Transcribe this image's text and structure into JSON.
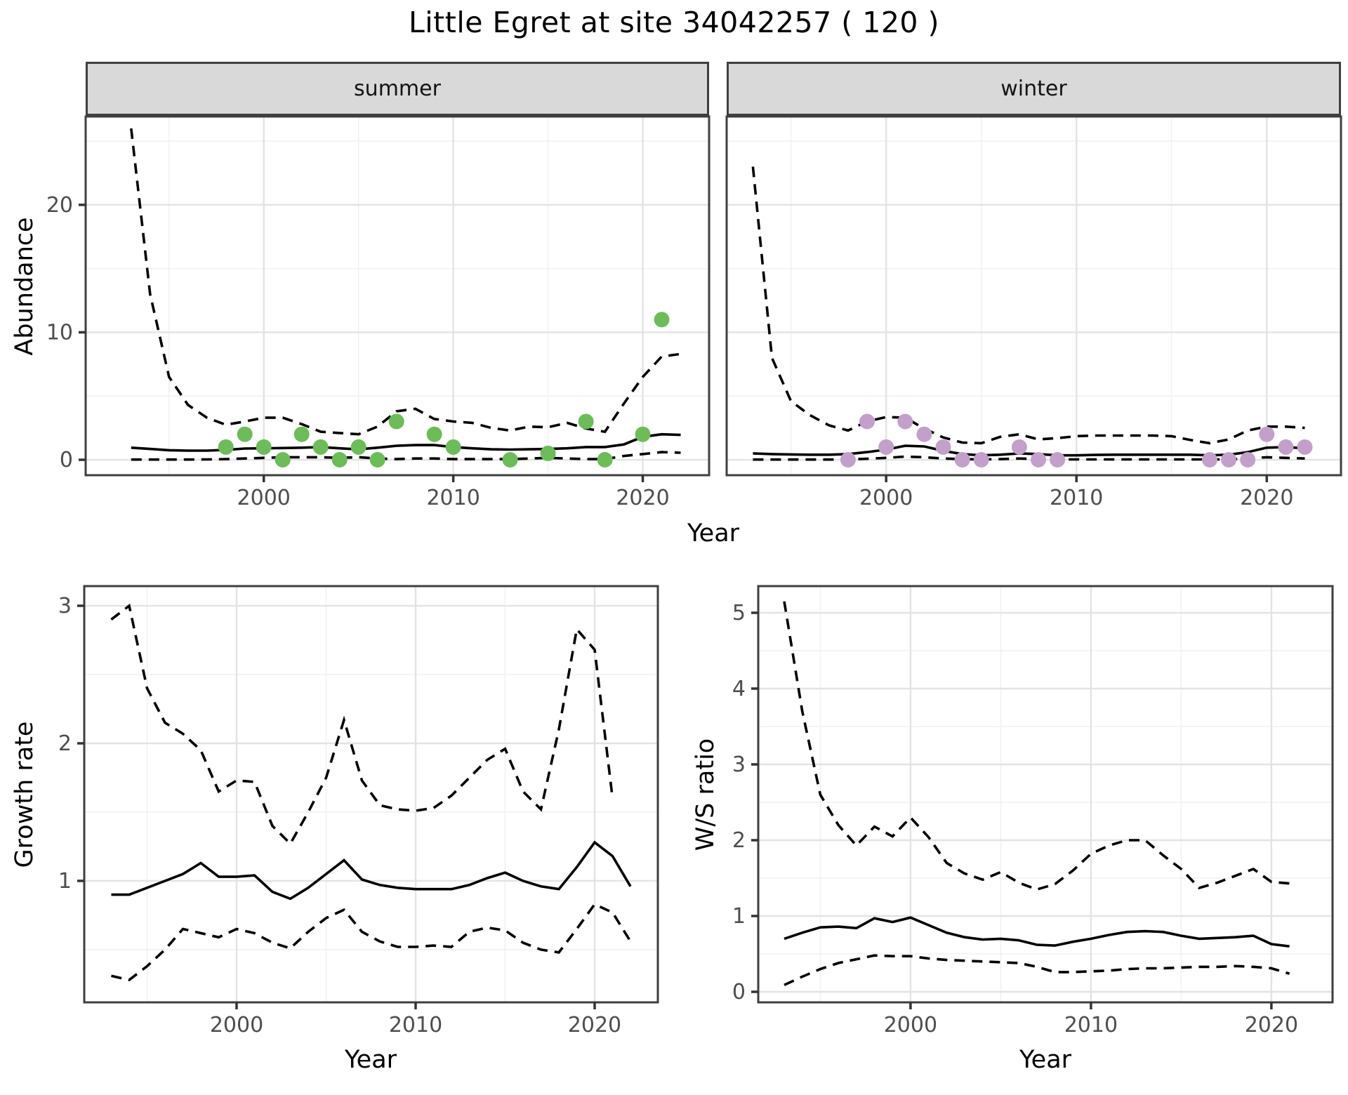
{
  "title": "Little Egret at site 34042257 ( 120 )",
  "facets": {
    "summer": "summer",
    "winter": "winter"
  },
  "axis_titles": {
    "abundance": "Abundance",
    "year_top": "Year",
    "growth_rate": "Growth rate",
    "ws_ratio": "W/S ratio",
    "year_bottom_left": "Year",
    "year_bottom_right": "Year"
  },
  "colors": {
    "summer_point": "#6cbc59",
    "winter_point": "#c39fcb",
    "line": "#000000",
    "grid_major": "#e3e3e3",
    "grid_minor": "#f1f1f1",
    "strip_bg": "#d9d9d9",
    "panel_border": "#3f3f3f",
    "tick_mark": "#333333",
    "tick_text": "#4d4d4d"
  },
  "chart_data": [
    {
      "id": "A",
      "type": "line",
      "facet": "summer",
      "title": "Little Egret at site 34042257 ( 120 ) - summer abundance",
      "xlabel": "Year",
      "ylabel": "Abundance",
      "grid": true,
      "legend": "none",
      "xlim": [
        1990.6,
        2023.5
      ],
      "ylim": [
        -1.21,
        26.93
      ],
      "xticks": {
        "values": [
          2000,
          2010,
          2020
        ],
        "labels": [
          "2000",
          "2010",
          "2020"
        ]
      },
      "xticks_minor": [
        1995,
        2005,
        2015
      ],
      "yticks": {
        "values": [
          0,
          10,
          20
        ],
        "labels": [
          "0",
          "10",
          "20"
        ]
      },
      "yticks_minor": [
        5,
        15,
        25
      ],
      "show_xtick_labels": true,
      "show_ytick_labels": true,
      "series": [
        {
          "name": "upper_95ci",
          "style": "dashed",
          "start": 1993,
          "values": [
            26,
            13,
            6.5,
            4.3,
            3.3,
            2.75,
            3,
            3.3,
            3.3,
            2.8,
            2.2,
            2.1,
            2,
            2.6,
            3.8,
            4,
            3.2,
            3,
            2.9,
            2.5,
            2.3,
            2.6,
            2.55,
            2.9,
            2.45,
            2.2,
            4.4,
            6.5,
            8.1,
            8.3
          ]
        },
        {
          "name": "median",
          "style": "solid",
          "start": 1993,
          "values": [
            0.95,
            0.85,
            0.75,
            0.72,
            0.72,
            0.78,
            0.88,
            0.9,
            0.92,
            0.95,
            1,
            0.9,
            0.82,
            0.95,
            1.1,
            1.15,
            1.15,
            1,
            0.9,
            0.82,
            0.8,
            0.82,
            0.85,
            0.9,
            1,
            1,
            1.2,
            1.8,
            2,
            1.95
          ]
        },
        {
          "name": "lower_95ci",
          "style": "dashed",
          "start": 1993,
          "values": [
            0.02,
            0.02,
            0.02,
            0.02,
            0.03,
            0.05,
            0.1,
            0.15,
            0.2,
            0.2,
            0.2,
            0.15,
            0.2,
            0.1,
            0.05,
            0.1,
            0.1,
            0.05,
            0.05,
            0.05,
            0.05,
            0.1,
            0.15,
            0.1,
            0.05,
            0.05,
            0.3,
            0.45,
            0.6,
            0.55
          ]
        }
      ],
      "points": {
        "name": "summer_counts",
        "color_key": "summer_point",
        "data": [
          [
            1998,
            1
          ],
          [
            1999,
            2
          ],
          [
            2000,
            1
          ],
          [
            2001,
            0
          ],
          [
            2002,
            2
          ],
          [
            2003,
            1
          ],
          [
            2004,
            0
          ],
          [
            2005,
            1
          ],
          [
            2006,
            0
          ],
          [
            2007,
            3
          ],
          [
            2009,
            2
          ],
          [
            2010,
            1
          ],
          [
            2013,
            0
          ],
          [
            2015,
            0.5
          ],
          [
            2017,
            3
          ],
          [
            2018,
            0
          ],
          [
            2020,
            2
          ],
          [
            2021,
            11
          ]
        ]
      }
    },
    {
      "id": "B",
      "type": "line",
      "facet": "winter",
      "title": "Little Egret at site 34042257 ( 120 ) - winter abundance",
      "xlabel": "Year",
      "ylabel": "Abundance",
      "grid": true,
      "legend": "none",
      "xlim": [
        1991.62,
        2023.9
      ],
      "ylim": [
        -1.21,
        26.93
      ],
      "xticks": {
        "values": [
          2000,
          2010,
          2020
        ],
        "labels": [
          "2000",
          "2010",
          "2020"
        ]
      },
      "xticks_minor": [
        1995,
        2005,
        2015
      ],
      "yticks": {
        "values": [
          0,
          10,
          20
        ],
        "labels": [
          "0",
          "10",
          "20"
        ]
      },
      "yticks_minor": [
        5,
        15,
        25
      ],
      "show_xtick_labels": true,
      "show_ytick_labels": false,
      "series": [
        {
          "name": "upper_95ci",
          "style": "dashed",
          "start": 1993,
          "values": [
            23,
            8,
            4.6,
            3.5,
            2.7,
            2.3,
            3,
            3.35,
            3.3,
            2.45,
            1.75,
            1.35,
            1.3,
            1.8,
            2,
            1.6,
            1.7,
            1.85,
            1.9,
            1.9,
            1.9,
            1.9,
            1.85,
            1.55,
            1.3,
            1.6,
            2.3,
            2.6,
            2.6,
            2.5
          ]
        },
        {
          "name": "median",
          "style": "solid",
          "start": 1993,
          "values": [
            0.5,
            0.45,
            0.42,
            0.4,
            0.4,
            0.45,
            0.6,
            0.8,
            1.1,
            1.05,
            0.7,
            0.45,
            0.35,
            0.4,
            0.5,
            0.45,
            0.35,
            0.35,
            0.38,
            0.4,
            0.4,
            0.4,
            0.4,
            0.4,
            0.35,
            0.4,
            0.6,
            0.95,
            1,
            0.9
          ]
        },
        {
          "name": "lower_95ci",
          "style": "dashed",
          "start": 1993,
          "values": [
            0.02,
            0.02,
            0.02,
            0.02,
            0.02,
            0.03,
            0.08,
            0.15,
            0.25,
            0.2,
            0.1,
            0.05,
            0.03,
            0.05,
            0.1,
            0.05,
            0.03,
            0.03,
            0.03,
            0.03,
            0.03,
            0.03,
            0.03,
            0.03,
            0.03,
            0.03,
            0.1,
            0.2,
            0.15,
            0.1
          ]
        }
      ],
      "points": {
        "name": "winter_counts",
        "color_key": "winter_point",
        "data": [
          [
            1998,
            0
          ],
          [
            1999,
            3
          ],
          [
            2000,
            1
          ],
          [
            2001,
            3
          ],
          [
            2002,
            2
          ],
          [
            2003,
            1
          ],
          [
            2004,
            0
          ],
          [
            2005,
            0
          ],
          [
            2007,
            1
          ],
          [
            2008,
            0
          ],
          [
            2009,
            0
          ],
          [
            2017,
            0
          ],
          [
            2018,
            0
          ],
          [
            2019,
            0
          ],
          [
            2020,
            2
          ],
          [
            2021,
            1
          ],
          [
            2022,
            1
          ]
        ]
      }
    },
    {
      "id": "C",
      "type": "line",
      "facet": null,
      "title": "Growth rate",
      "xlabel": "Year",
      "ylabel": "Growth rate",
      "grid": true,
      "legend": "none",
      "xlim": [
        1991.49,
        2023.53
      ],
      "ylim": [
        0.117,
        3.143
      ],
      "xticks": {
        "values": [
          2000,
          2010,
          2020
        ],
        "labels": [
          "2000",
          "2010",
          "2020"
        ]
      },
      "xticks_minor": [
        1995,
        2005,
        2015
      ],
      "yticks": {
        "values": [
          1,
          2,
          3
        ],
        "labels": [
          "1",
          "2",
          "3"
        ]
      },
      "yticks_minor": [
        0.5,
        1.5,
        2.5
      ],
      "show_xtick_labels": true,
      "show_ytick_labels": true,
      "series": [
        {
          "name": "upper_95ci",
          "style": "dashed",
          "start": 1993,
          "values": [
            2.9,
            3,
            2.4,
            2.15,
            2.07,
            1.95,
            1.65,
            1.73,
            1.72,
            1.4,
            1.27,
            1.5,
            1.75,
            2.17,
            1.73,
            1.55,
            1.52,
            1.51,
            1.53,
            1.62,
            1.75,
            1.88,
            1.96,
            1.65,
            1.52,
            2.1,
            2.83,
            2.68,
            1.6
          ]
        },
        {
          "name": "median",
          "style": "solid",
          "start": 1993,
          "values": [
            0.9,
            0.9,
            0.95,
            1,
            1.05,
            1.13,
            1.03,
            1.03,
            1.04,
            0.92,
            0.87,
            0.95,
            1.05,
            1.15,
            1.01,
            0.97,
            0.95,
            0.94,
            0.94,
            0.94,
            0.97,
            1.02,
            1.06,
            1,
            0.96,
            0.94,
            1.1,
            1.28,
            1.18,
            0.96
          ]
        },
        {
          "name": "lower_95ci",
          "style": "dashed",
          "start": 1993,
          "values": [
            0.31,
            0.28,
            0.38,
            0.5,
            0.65,
            0.62,
            0.59,
            0.65,
            0.62,
            0.55,
            0.51,
            0.63,
            0.73,
            0.79,
            0.63,
            0.56,
            0.52,
            0.52,
            0.53,
            0.52,
            0.63,
            0.66,
            0.64,
            0.55,
            0.5,
            0.48,
            0.65,
            0.83,
            0.77,
            0.56
          ]
        }
      ],
      "points": null
    },
    {
      "id": "D",
      "type": "line",
      "facet": null,
      "title": "W/S ratio",
      "xlabel": "Year",
      "ylabel": "W/S ratio",
      "grid": true,
      "legend": "none",
      "xlim": [
        1991.56,
        2023.39
      ],
      "ylim": [
        -0.139,
        5.352
      ],
      "xticks": {
        "values": [
          2000,
          2010,
          2020
        ],
        "labels": [
          "2000",
          "2010",
          "2020"
        ]
      },
      "xticks_minor": [
        1995,
        2005,
        2015
      ],
      "yticks": {
        "values": [
          0,
          1,
          2,
          3,
          4,
          5
        ],
        "labels": [
          "0",
          "1",
          "2",
          "3",
          "4",
          "5"
        ]
      },
      "yticks_minor": [
        0.5,
        1.5,
        2.5,
        3.5,
        4.5
      ],
      "show_xtick_labels": true,
      "show_ytick_labels": true,
      "series": [
        {
          "name": "upper_95ci",
          "style": "dashed",
          "start": 1993,
          "values": [
            5.15,
            3.7,
            2.6,
            2.2,
            1.93,
            2.18,
            2.05,
            2.3,
            2.04,
            1.7,
            1.56,
            1.48,
            1.58,
            1.44,
            1.35,
            1.42,
            1.6,
            1.82,
            1.93,
            2,
            2,
            1.8,
            1.62,
            1.37,
            1.44,
            1.53,
            1.62,
            1.45,
            1.43
          ]
        },
        {
          "name": "median",
          "style": "solid",
          "start": 1993,
          "values": [
            0.7,
            0.78,
            0.85,
            0.86,
            0.84,
            0.97,
            0.92,
            0.98,
            0.88,
            0.78,
            0.72,
            0.69,
            0.7,
            0.68,
            0.62,
            0.61,
            0.66,
            0.7,
            0.75,
            0.79,
            0.8,
            0.79,
            0.74,
            0.7,
            0.71,
            0.72,
            0.74,
            0.63,
            0.6
          ]
        },
        {
          "name": "lower_95ci",
          "style": "dashed",
          "start": 1993,
          "values": [
            0.09,
            0.2,
            0.3,
            0.38,
            0.43,
            0.48,
            0.47,
            0.47,
            0.44,
            0.42,
            0.41,
            0.4,
            0.39,
            0.38,
            0.33,
            0.26,
            0.26,
            0.27,
            0.28,
            0.3,
            0.31,
            0.31,
            0.32,
            0.33,
            0.33,
            0.34,
            0.33,
            0.31,
            0.24
          ]
        }
      ],
      "points": null
    }
  ]
}
